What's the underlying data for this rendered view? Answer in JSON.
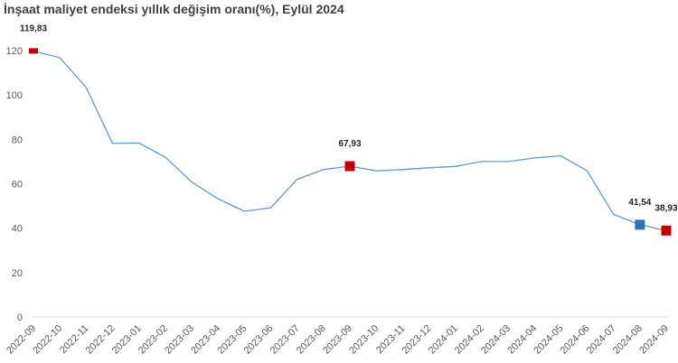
{
  "chart_data": {
    "type": "line",
    "title": "İnşaat maliyet endeksi yıllık değişim oranı(%), Eylül 2024",
    "xlabel": "",
    "ylabel": "",
    "ylim": [
      0,
      120
    ],
    "yticks": [
      0,
      20,
      40,
      60,
      80,
      100,
      120
    ],
    "grid": false,
    "legend": "none",
    "categories": [
      "2022-09",
      "2022-10",
      "2022-11",
      "2022-12",
      "2023-01",
      "2023-02",
      "2023-03",
      "2023-04",
      "2023-05",
      "2023-06",
      "2023-07",
      "2023-08",
      "2023-09",
      "2023-10",
      "2023-11",
      "2023-12",
      "2024-01",
      "2024-02",
      "2024-03",
      "2024-04",
      "2024-05",
      "2024-06",
      "2024-07",
      "2024-08",
      "2024-09"
    ],
    "series": [
      {
        "color": "#5b9bd5",
        "values": [
          119.83,
          116.8,
          103.4,
          78.2,
          78.4,
          72.0,
          60.8,
          53.2,
          47.6,
          49.2,
          62.0,
          66.4,
          67.93,
          65.8,
          66.4,
          67.2,
          67.8,
          70.0,
          70.0,
          71.6,
          72.6,
          65.8,
          46.2,
          41.54,
          38.93
        ]
      }
    ],
    "markers": [
      {
        "index": 0,
        "color": "#c00000",
        "shape": "dash"
      },
      {
        "index": 12,
        "color": "#c00000",
        "shape": "square"
      },
      {
        "index": 23,
        "color": "#2e75b6",
        "shape": "square"
      },
      {
        "index": 24,
        "color": "#c00000",
        "shape": "square"
      }
    ],
    "data_labels": [
      {
        "index": 0,
        "text": "119,83"
      },
      {
        "index": 12,
        "text": "67,93"
      },
      {
        "index": 23,
        "text": "41,54"
      },
      {
        "index": 24,
        "text": "38,93"
      }
    ]
  }
}
